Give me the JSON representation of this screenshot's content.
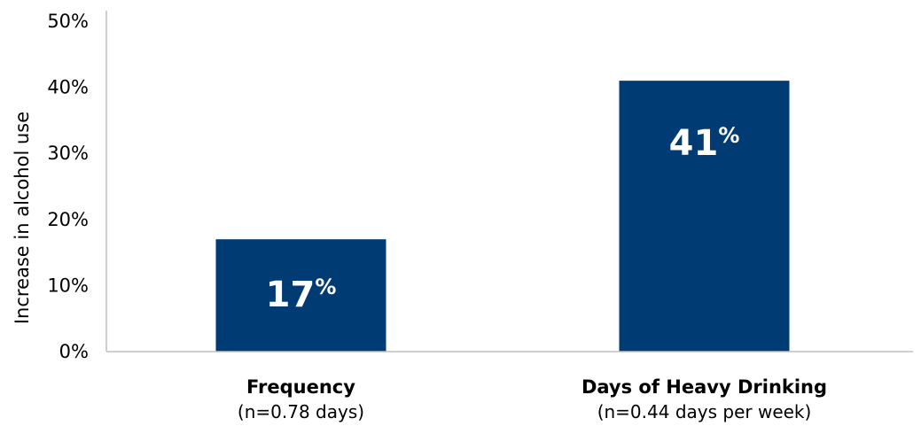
{
  "chart_data": {
    "type": "bar",
    "categories": [
      "Frequency",
      "Days of Heavy Drinking"
    ],
    "category_sublabels": [
      "(n=0.78 days)",
      "(n=0.44 days per week)"
    ],
    "values": [
      17,
      41
    ],
    "data_labels": [
      {
        "number": "17",
        "unit": "%"
      },
      {
        "number": "41",
        "unit": "%"
      }
    ],
    "title": "",
    "xlabel": "",
    "ylabel": "Increase in alcohol use",
    "ylim": [
      0,
      50
    ],
    "yticks": [
      0,
      10,
      20,
      30,
      40,
      50
    ],
    "ytick_labels": [
      "0%",
      "10%",
      "20%",
      "30%",
      "40%",
      "50%"
    ],
    "grid": false,
    "legend": "none",
    "colors": {
      "bar": "#003B73",
      "axis": "#BFBFBF",
      "data_label": "#FFFFFF"
    }
  }
}
